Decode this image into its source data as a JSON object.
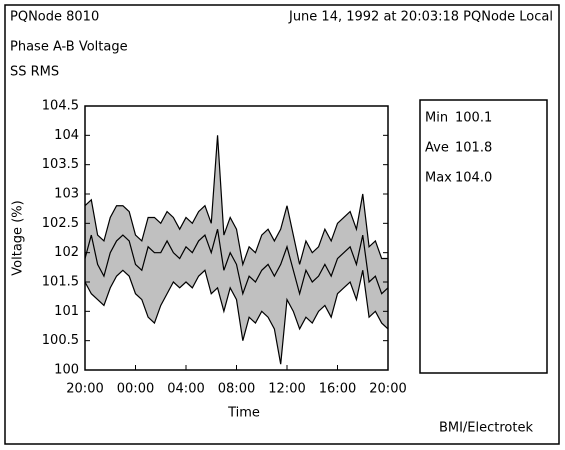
{
  "header": {
    "left": "PQNode 8010",
    "right": "June 14, 1992 at 20:03:18 PQNode Local"
  },
  "footer": "BMI/Electrotek",
  "stats": [
    {
      "label": "Min",
      "value": "100.1"
    },
    {
      "label": "Ave",
      "value": "101.8"
    },
    {
      "label": "Max",
      "value": "104.0"
    }
  ],
  "chart_data": {
    "type": "band",
    "title": "Phase A-B Voltage",
    "subtitle": "SS RMS",
    "x_label": "Time",
    "y_label": "Voltage (%)",
    "band_color": "#c0c0c0",
    "x": [
      0,
      0.5,
      1,
      1.5,
      2,
      2.5,
      3,
      3.5,
      4,
      4.5,
      5,
      5.5,
      6,
      6.5,
      7,
      7.5,
      8,
      8.5,
      9,
      9.5,
      10,
      10.5,
      11,
      11.5,
      12,
      12.5,
      13,
      13.5,
      14,
      14.5,
      15,
      15.5,
      16,
      16.5,
      17,
      17.5,
      18,
      18.5,
      19,
      19.5,
      20,
      20.5,
      21,
      21.5,
      22,
      22.5,
      23,
      23.5,
      24
    ],
    "series": [
      {
        "color": "#000000",
        "values": [
          101.5,
          101.3,
          101.2,
          101.1,
          101.4,
          101.6,
          101.7,
          101.6,
          101.3,
          101.2,
          100.9,
          100.8,
          101.1,
          101.3,
          101.5,
          101.4,
          101.5,
          101.4,
          101.6,
          101.7,
          101.3,
          101.4,
          101.0,
          101.4,
          101.2,
          100.5,
          100.9,
          100.8,
          101.0,
          100.9,
          100.7,
          100.1,
          101.2,
          101.0,
          100.7,
          100.9,
          100.8,
          101.0,
          101.1,
          100.9,
          101.3,
          101.4,
          101.5,
          101.2,
          101.7,
          100.9,
          101.0,
          100.8,
          100.7
        ]
      },
      {
        "color": "#000000",
        "values": [
          101.9,
          102.3,
          101.8,
          101.6,
          102.0,
          102.2,
          102.3,
          102.2,
          101.8,
          101.7,
          102.1,
          102.0,
          102.0,
          102.2,
          102.0,
          101.9,
          102.1,
          102.0,
          102.2,
          102.3,
          102.0,
          102.4,
          101.7,
          102.0,
          101.8,
          101.3,
          101.6,
          101.5,
          101.7,
          101.8,
          101.6,
          101.8,
          102.1,
          101.7,
          101.3,
          101.7,
          101.5,
          101.6,
          101.8,
          101.6,
          101.9,
          102.0,
          102.1,
          101.8,
          102.3,
          101.5,
          101.6,
          101.3,
          101.4
        ]
      },
      {
        "color": "#000000",
        "values": [
          102.8,
          102.9,
          102.3,
          102.2,
          102.6,
          102.8,
          102.8,
          102.7,
          102.3,
          102.2,
          102.6,
          102.6,
          102.5,
          102.7,
          102.6,
          102.4,
          102.6,
          102.5,
          102.7,
          102.8,
          102.5,
          104.0,
          102.3,
          102.6,
          102.4,
          101.8,
          102.1,
          102.0,
          102.3,
          102.4,
          102.2,
          102.4,
          102.8,
          102.3,
          101.8,
          102.2,
          102.0,
          102.1,
          102.4,
          102.2,
          102.5,
          102.6,
          102.7,
          102.4,
          103.0,
          102.1,
          102.2,
          101.9,
          101.9
        ]
      }
    ],
    "xlim": [
      0,
      24
    ],
    "xticks": [
      {
        "value": 0,
        "label": "20:00"
      },
      {
        "value": 4,
        "label": "00:00"
      },
      {
        "value": 8,
        "label": "04:00"
      },
      {
        "value": 12,
        "label": "08:00"
      },
      {
        "value": 16,
        "label": "12:00"
      },
      {
        "value": 20,
        "label": "16:00"
      },
      {
        "value": 24,
        "label": "20:00"
      }
    ],
    "ylim": [
      100,
      104.5
    ],
    "yticks": [
      100,
      100.5,
      101,
      101.5,
      102,
      102.5,
      103,
      103.5,
      104,
      104.5
    ]
  }
}
